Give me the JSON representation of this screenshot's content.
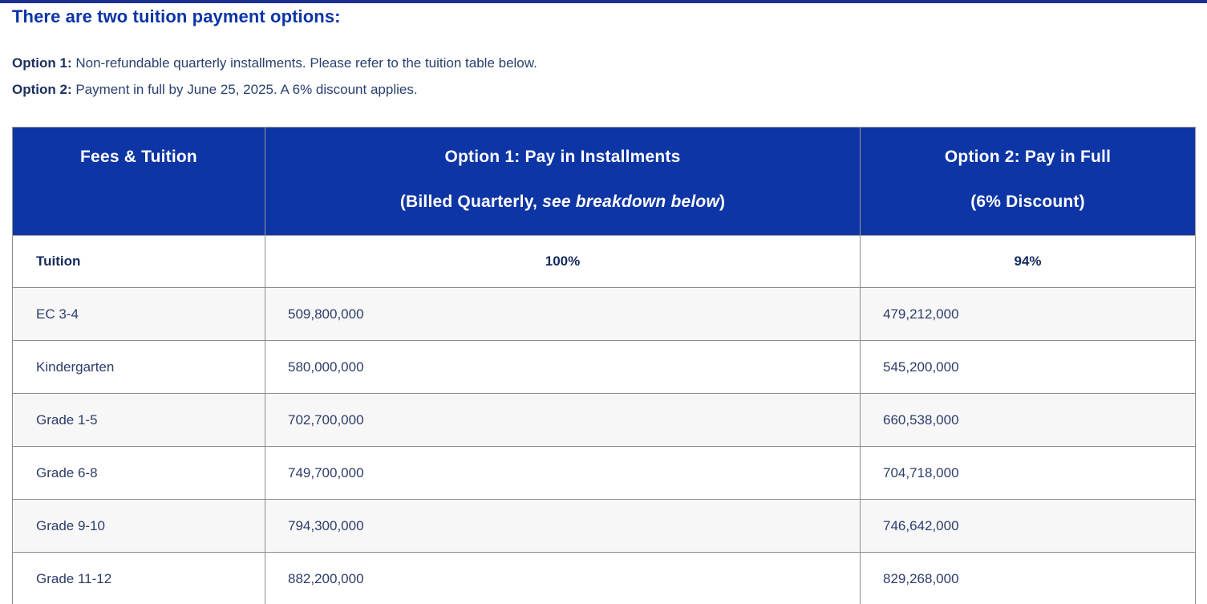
{
  "page": {
    "heading": "There are two tuition payment options:",
    "options": [
      {
        "label": "Option 1:",
        "text": " Non-refundable quarterly installments. Please refer to the tuition table below."
      },
      {
        "label": "Option 2:",
        "text": " Payment in full by June 25, 2025. A 6% discount applies."
      }
    ]
  },
  "table": {
    "header": {
      "col1": "Fees & Tuition",
      "col2_line1": "Option 1: Pay in Installments",
      "col2_line2_prefix": "(Billed Quarterly, ",
      "col2_line2_italic": "see breakdown below",
      "col2_line2_suffix": ")",
      "col3_line1": "Option 2: Pay in Full",
      "col3_line2": "(6% Discount)"
    },
    "subheader": {
      "label": "Tuition",
      "option1": "100%",
      "option2": "94%"
    },
    "rows": [
      {
        "label": "EC 3-4",
        "option1": "509,800,000",
        "option2": "479,212,000"
      },
      {
        "label": "Kindergarten",
        "option1": "580,000,000",
        "option2": "545,200,000"
      },
      {
        "label": "Grade 1-5",
        "option1": "702,700,000",
        "option2": "660,538,000"
      },
      {
        "label": "Grade 6-8",
        "option1": "749,700,000",
        "option2": "704,718,000"
      },
      {
        "label": "Grade 9-10",
        "option1": "794,300,000",
        "option2": "746,642,000"
      },
      {
        "label": "Grade 11-12",
        "option1": "882,200,000",
        "option2": "829,268,000"
      }
    ]
  },
  "colors": {
    "header_background": "#0d35a5",
    "heading_text": "#0b34a7",
    "top_rule": "#1c2f95",
    "body_text": "#29406e",
    "table_text": "#2d3c6b",
    "grid_line": "#8c8c8c",
    "alt_row_background": "#f7f7f7"
  }
}
